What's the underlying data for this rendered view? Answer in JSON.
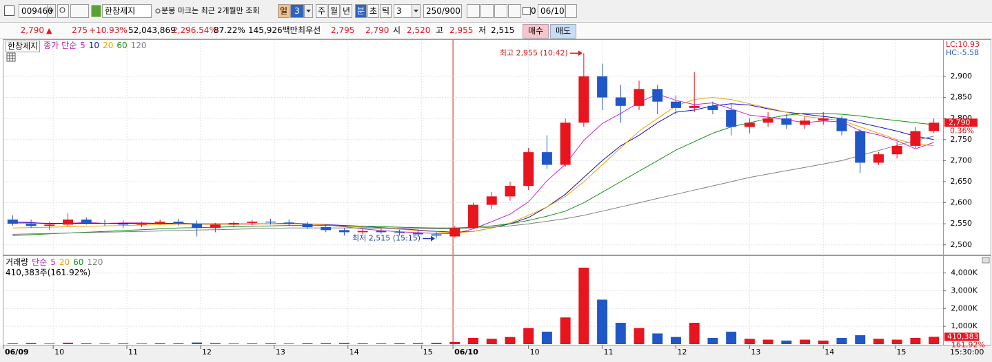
{
  "toolbar": {
    "code": "009460",
    "name": "한창제지",
    "notice": "분봉 마크는 최근 2개월만 조회",
    "period_buttons": [
      "일",
      "3",
      "주",
      "월",
      "년",
      "분",
      "초",
      "틱"
    ],
    "interval": "3",
    "count": "250/900",
    "check_label": "0",
    "date": "06/10"
  },
  "quote": {
    "price": "2,790",
    "arrow": "▲",
    "change": "275",
    "change_pct": "+10.93%",
    "volume": "52,043,869",
    "volume_pct": "2,296.54%",
    "rate": "87.22%",
    "amount": "145,926백만",
    "best_label": "최우선",
    "ask": "2,795",
    "bid": "2,790",
    "open_label": "시",
    "open": "2,520",
    "high_label": "고",
    "high": "2,955",
    "low_label": "저",
    "low": "2,515",
    "buy": "매수",
    "sell": "매도"
  },
  "chart_data": [
    {
      "type": "candlestick",
      "legend_title": "한창제지",
      "ma_label": "종가 단순",
      "up_color": "#e8141e",
      "down_color": "#1f57c8",
      "open": [
        2560,
        2550,
        2545,
        2548,
        2560,
        2552,
        2550,
        2548,
        2552,
        2555,
        2550,
        2540,
        2548,
        2552,
        2555,
        2553,
        2550,
        2542,
        2535,
        2530,
        2533,
        2530,
        2528,
        2525,
        2520,
        2540,
        2595,
        2615,
        2640,
        2720,
        2690,
        2790,
        2900,
        2850,
        2830,
        2870,
        2840,
        2825,
        2830,
        2820,
        2780,
        2790,
        2800,
        2785,
        2795,
        2800,
        2770,
        2695,
        2715,
        2735,
        2770
      ],
      "high": [
        2570,
        2560,
        2555,
        2575,
        2565,
        2560,
        2558,
        2555,
        2560,
        2562,
        2558,
        2552,
        2556,
        2560,
        2562,
        2560,
        2555,
        2548,
        2540,
        2538,
        2540,
        2536,
        2535,
        2530,
        2545,
        2600,
        2625,
        2650,
        2730,
        2760,
        2800,
        2955,
        2930,
        2880,
        2890,
        2880,
        2855,
        2910,
        2840,
        2835,
        2800,
        2815,
        2810,
        2805,
        2815,
        2805,
        2775,
        2720,
        2745,
        2780,
        2800
      ],
      "low": [
        2545,
        2540,
        2535,
        2545,
        2548,
        2545,
        2540,
        2542,
        2548,
        2545,
        2520,
        2530,
        2542,
        2546,
        2548,
        2545,
        2538,
        2530,
        2522,
        2525,
        2526,
        2522,
        2520,
        2515,
        2518,
        2538,
        2585,
        2605,
        2630,
        2680,
        2685,
        2780,
        2820,
        2790,
        2820,
        2810,
        2810,
        2815,
        2810,
        2760,
        2765,
        2780,
        2775,
        2775,
        2785,
        2760,
        2670,
        2690,
        2705,
        2730,
        2765
      ],
      "close": [
        2550,
        2545,
        2548,
        2560,
        2552,
        2550,
        2548,
        2552,
        2555,
        2550,
        2540,
        2548,
        2552,
        2555,
        2553,
        2550,
        2542,
        2535,
        2530,
        2533,
        2530,
        2528,
        2525,
        2522,
        2540,
        2595,
        2615,
        2640,
        2720,
        2690,
        2790,
        2900,
        2850,
        2830,
        2870,
        2840,
        2825,
        2830,
        2820,
        2780,
        2790,
        2800,
        2785,
        2795,
        2800,
        2770,
        2695,
        2715,
        2735,
        2770,
        2790
      ],
      "series": [
        {
          "name": "5",
          "color": "#d020d0",
          "values": [
            2555,
            2553,
            2550,
            2551,
            2553,
            2551,
            2552,
            2552,
            2551,
            2551,
            2549,
            2549,
            2549,
            2549,
            2550,
            2552,
            2550,
            2547,
            2543,
            2538,
            2534,
            2531,
            2529,
            2527,
            2526,
            2538,
            2555,
            2573,
            2602,
            2652,
            2691,
            2748,
            2788,
            2812,
            2838,
            2858,
            2843,
            2833,
            2837,
            2823,
            2808,
            2803,
            2797,
            2790,
            2794,
            2792,
            2771,
            2761,
            2747,
            2728,
            2743
          ]
        },
        {
          "name": "10",
          "color": "#1010c0",
          "values": [
            2552,
            2552,
            2551,
            2551,
            2551,
            2551,
            2551,
            2551,
            2551,
            2551,
            2550,
            2550,
            2550,
            2550,
            2550,
            2550,
            2549,
            2548,
            2546,
            2544,
            2541,
            2538,
            2535,
            2532,
            2530,
            2532,
            2540,
            2550,
            2565,
            2590,
            2620,
            2660,
            2700,
            2735,
            2760,
            2790,
            2815,
            2820,
            2830,
            2835,
            2832,
            2823,
            2815,
            2810,
            2805,
            2800,
            2790,
            2780,
            2770,
            2758,
            2750
          ]
        },
        {
          "name": "20",
          "color": "#f0a000",
          "values": [
            2540,
            2541,
            2542,
            2543,
            2544,
            2545,
            2546,
            2547,
            2548,
            2549,
            2549,
            2549,
            2549,
            2550,
            2550,
            2550,
            2549,
            2547,
            2545,
            2542,
            2540,
            2537,
            2534,
            2531,
            2528,
            2532,
            2540,
            2552,
            2570,
            2590,
            2615,
            2650,
            2690,
            2730,
            2770,
            2800,
            2830,
            2845,
            2850,
            2845,
            2835,
            2825,
            2815,
            2805,
            2800,
            2795,
            2780,
            2765,
            2750,
            2740,
            2735
          ]
        },
        {
          "name": "60",
          "color": "#109010",
          "values": [
            2522,
            2524,
            2526,
            2528,
            2530,
            2532,
            2534,
            2536,
            2538,
            2540,
            2541,
            2542,
            2543,
            2544,
            2545,
            2546,
            2546,
            2546,
            2545,
            2544,
            2543,
            2542,
            2541,
            2540,
            2540,
            2542,
            2545,
            2550,
            2558,
            2568,
            2580,
            2600,
            2625,
            2650,
            2675,
            2700,
            2725,
            2745,
            2765,
            2780,
            2790,
            2800,
            2808,
            2812,
            2812,
            2810,
            2806,
            2800,
            2795,
            2790,
            2785
          ]
        },
        {
          "name": "120",
          "color": "#808080",
          "values": [
            2525,
            2526,
            2527,
            2528,
            2529,
            2530,
            2531,
            2532,
            2533,
            2534,
            2535,
            2536,
            2537,
            2538,
            2539,
            2540,
            2540,
            2540,
            2540,
            2540,
            2539,
            2539,
            2538,
            2538,
            2538,
            2540,
            2542,
            2545,
            2550,
            2556,
            2562,
            2570,
            2580,
            2590,
            2600,
            2610,
            2620,
            2630,
            2640,
            2650,
            2660,
            2668,
            2676,
            2684,
            2692,
            2700,
            2712,
            2724,
            2736,
            2748,
            2758
          ]
        }
      ],
      "xlim": [
        0,
        51
      ],
      "ylim": [
        2480,
        2980
      ],
      "yticks": [
        {
          "value": 2500,
          "label": "2,500"
        },
        {
          "value": 2550,
          "label": "2,550"
        },
        {
          "value": 2600,
          "label": "2,600"
        },
        {
          "value": 2650,
          "label": "2,650"
        },
        {
          "value": 2700,
          "label": "2,700"
        },
        {
          "value": 2750,
          "label": "2,750"
        },
        {
          "value": 2800,
          "label": "2,800"
        },
        {
          "value": 2850,
          "label": "2,850"
        },
        {
          "value": 2900,
          "label": "2,900"
        }
      ],
      "annotations": [
        {
          "text": "최고 2,955 (10:42)",
          "x": 31,
          "y": 2955
        },
        {
          "text": "최저 2,515 (15:15)",
          "x": 23,
          "y": 2515
        }
      ],
      "lc": "LC:10.93",
      "hc": "HC:-5.58",
      "last_label": "2,790",
      "last_pct": "0.36%"
    },
    {
      "type": "bar",
      "legend_title": "거래량",
      "ma_label": "단순",
      "ma_names": [
        "5",
        "20",
        "60",
        "120"
      ],
      "ma_colors": [
        "#d020d0",
        "#f0a000",
        "#109010",
        "#808080"
      ],
      "readout": "410,383주(161.92%)",
      "values": [
        40,
        60,
        30,
        80,
        40,
        30,
        35,
        30,
        45,
        40,
        90,
        50,
        30,
        35,
        40,
        30,
        45,
        50,
        60,
        40,
        35,
        45,
        50,
        70,
        120,
        350,
        300,
        400,
        900,
        700,
        1500,
        4300,
        2500,
        1200,
        900,
        600,
        400,
        1200,
        350,
        700,
        300,
        250,
        200,
        250,
        200,
        350,
        500,
        300,
        250,
        350,
        410.383
      ],
      "xlim": [
        0,
        51
      ],
      "ylim": [
        0,
        4800
      ],
      "yticks": [
        {
          "value": 1000,
          "label": "1,000K"
        },
        {
          "value": 2000,
          "label": "2,000K"
        },
        {
          "value": 3000,
          "label": "3,000K"
        },
        {
          "value": 4000,
          "label": "4,000K"
        }
      ],
      "xticks": [
        {
          "value": 0,
          "label": "06/09"
        },
        {
          "value": 2.7,
          "label": "10"
        },
        {
          "value": 6.7,
          "label": "11"
        },
        {
          "value": 10.7,
          "label": "12"
        },
        {
          "value": 14.7,
          "label": "13"
        },
        {
          "value": 18.7,
          "label": "14"
        },
        {
          "value": 22.7,
          "label": "15"
        },
        {
          "value": 24.4,
          "label": "06/10"
        },
        {
          "value": 28.5,
          "label": "10"
        },
        {
          "value": 32.5,
          "label": "11"
        },
        {
          "value": 36.5,
          "label": "12"
        },
        {
          "value": 40.5,
          "label": "13"
        },
        {
          "value": 44.5,
          "label": "14"
        },
        {
          "value": 48.4,
          "label": "15"
        }
      ],
      "x_readout": "15:30:00",
      "last_label": "410,383",
      "last_pct": "161.92%"
    }
  ]
}
